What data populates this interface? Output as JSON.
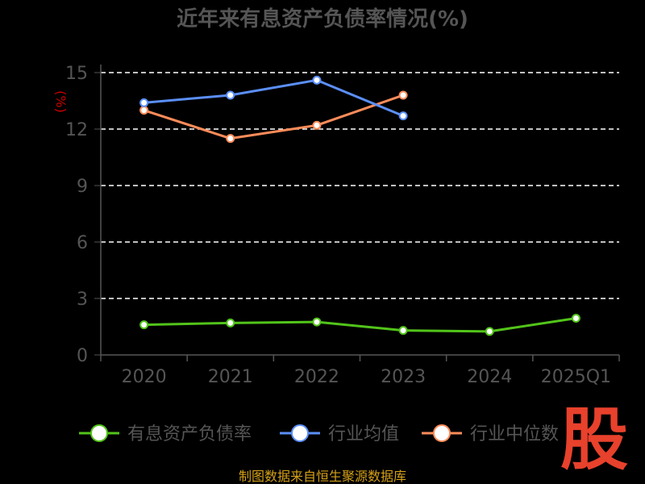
{
  "chart_data": {
    "type": "line",
    "title": "近年来有息资产负债率情况(%)",
    "ylabel": "(%)",
    "categories": [
      "2020",
      "2021",
      "2022",
      "2023",
      "2024",
      "2025Q1"
    ],
    "ylim": [
      0,
      15
    ],
    "yticks": [
      0,
      3,
      6,
      9,
      12,
      15
    ],
    "grid": true,
    "legend_position": "bottom",
    "series": [
      {
        "name": "有息资产负债率",
        "color": "#52c41a",
        "values": [
          1.6,
          1.7,
          1.75,
          1.3,
          1.25,
          1.95
        ]
      },
      {
        "name": "行业均值",
        "color": "#5b8ff9",
        "values": [
          13.4,
          13.8,
          14.6,
          12.7,
          null,
          null
        ]
      },
      {
        "name": "行业中位数",
        "color": "#ff8c5a",
        "values": [
          13.0,
          11.5,
          12.2,
          13.8,
          null,
          null
        ]
      }
    ]
  },
  "footer": {
    "source": "制图数据来自恒生聚源数据库"
  },
  "watermark": {
    "text": "股"
  }
}
